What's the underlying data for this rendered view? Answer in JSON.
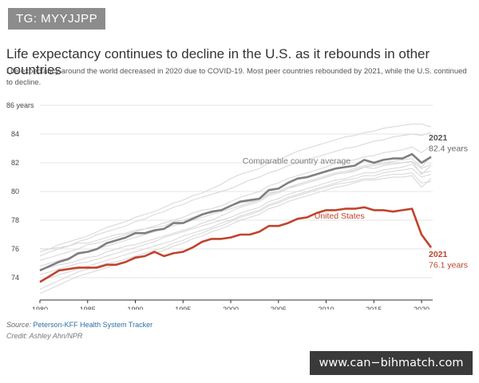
{
  "badge": "TG: MYYJJPP",
  "title": "Life expectancy continues to decline in the U.S. as it rebounds in other countries",
  "subtitle": "Life expectancy around the world decreased in 2020 due to COVID-19. Most peer countries rebounded by 2021, while the U.S. continued to decline.",
  "source_label": "Source:",
  "source_name": "Peterson-KFF Health System Tracker",
  "credit": "Credit: Ashley Ahn/NPR",
  "watermark": "www.can−bihmatch.com",
  "colors": {
    "us": "#c0442b",
    "average": "#7f7f7f",
    "countries": "#d6d6d6",
    "grid": "#e6e6e6",
    "axis": "#333333"
  },
  "chart_data": {
    "type": "line",
    "title": "Life expectancy continues to decline in the U.S. as it rebounds in other countries",
    "xlabel": "",
    "ylabel": "86 years",
    "xlim": [
      1980,
      2021
    ],
    "ylim": [
      72.5,
      86
    ],
    "x_ticks": [
      1980,
      1985,
      1990,
      1995,
      2000,
      2005,
      2010,
      2015,
      2020
    ],
    "y_ticks": [
      74,
      76,
      78,
      80,
      82,
      84,
      86
    ],
    "y_tick_labels": [
      "74",
      "76",
      "78",
      "80",
      "82",
      "84",
      "86 years"
    ],
    "grid": true,
    "x": [
      1980,
      1981,
      1982,
      1983,
      1984,
      1985,
      1986,
      1987,
      1988,
      1989,
      1990,
      1991,
      1992,
      1993,
      1994,
      1995,
      1996,
      1997,
      1998,
      1999,
      2000,
      2001,
      2002,
      2003,
      2004,
      2005,
      2006,
      2007,
      2008,
      2009,
      2010,
      2011,
      2012,
      2013,
      2014,
      2015,
      2016,
      2017,
      2018,
      2019,
      2020,
      2021
    ],
    "series": [
      {
        "name": "United States",
        "role": "us",
        "values": [
          73.7,
          74.1,
          74.5,
          74.6,
          74.7,
          74.7,
          74.7,
          74.9,
          74.9,
          75.1,
          75.4,
          75.5,
          75.8,
          75.5,
          75.7,
          75.8,
          76.1,
          76.5,
          76.7,
          76.7,
          76.8,
          77.0,
          77.0,
          77.2,
          77.6,
          77.6,
          77.8,
          78.1,
          78.2,
          78.5,
          78.7,
          78.7,
          78.8,
          78.8,
          78.9,
          78.7,
          78.7,
          78.6,
          78.7,
          78.8,
          77.0,
          76.1
        ],
        "end_label_year": "2021",
        "end_label_value": "76.1 years"
      },
      {
        "name": "Comparable country average",
        "role": "average",
        "values": [
          74.5,
          74.8,
          75.1,
          75.3,
          75.7,
          75.8,
          76.0,
          76.4,
          76.6,
          76.8,
          77.1,
          77.1,
          77.3,
          77.4,
          77.8,
          77.8,
          78.1,
          78.4,
          78.6,
          78.7,
          79.0,
          79.3,
          79.4,
          79.5,
          80.1,
          80.2,
          80.6,
          80.9,
          81.0,
          81.2,
          81.4,
          81.6,
          81.7,
          81.8,
          82.2,
          82.0,
          82.2,
          82.3,
          82.3,
          82.6,
          82.0,
          82.4
        ],
        "end_label_year": "2021",
        "end_label_value": "82.4 years"
      }
    ],
    "background_series": [
      {
        "values": [
          75.8,
          76.0,
          76.3,
          76.5,
          76.7,
          76.9,
          77.2,
          77.5,
          77.7,
          77.9,
          78.2,
          78.4,
          78.6,
          78.9,
          79.2,
          79.4,
          79.7,
          79.9,
          80.2,
          80.5,
          80.9,
          81.2,
          81.4,
          81.6,
          82.0,
          82.2,
          82.5,
          82.8,
          83.0,
          83.2,
          83.4,
          83.6,
          83.8,
          83.9,
          84.1,
          84.2,
          84.4,
          84.5,
          84.6,
          84.7,
          84.7,
          84.5
        ]
      },
      {
        "values": [
          75.5,
          75.8,
          76.0,
          76.2,
          76.5,
          76.7,
          77.0,
          77.2,
          77.4,
          77.6,
          77.9,
          78.1,
          78.4,
          78.6,
          78.9,
          79.1,
          79.4,
          79.6,
          79.8,
          80.0,
          80.2,
          80.5,
          80.8,
          81.0,
          81.3,
          81.5,
          81.8,
          82.0,
          82.2,
          82.4,
          82.6,
          82.8,
          83.0,
          83.1,
          83.3,
          83.5,
          83.6,
          83.8,
          83.9,
          84.0,
          83.9,
          84.1
        ]
      },
      {
        "values": [
          75.2,
          75.4,
          75.6,
          75.8,
          76.0,
          76.3,
          76.4,
          76.6,
          76.8,
          77.0,
          77.2,
          77.4,
          77.6,
          77.8,
          78.0,
          78.2,
          78.5,
          78.7,
          78.8,
          79.0,
          79.3,
          79.6,
          79.8,
          80.0,
          80.4,
          80.6,
          80.9,
          81.1,
          81.3,
          81.5,
          81.7,
          82.0,
          82.1,
          82.2,
          82.4,
          82.5,
          82.7,
          82.8,
          82.9,
          83.1,
          82.7,
          83.2
        ]
      },
      {
        "values": [
          74.8,
          75.0,
          75.2,
          75.4,
          75.6,
          75.8,
          76.0,
          76.2,
          76.4,
          76.6,
          76.8,
          77.0,
          77.2,
          77.4,
          77.6,
          77.8,
          78.0,
          78.2,
          78.4,
          78.6,
          78.8,
          79.0,
          79.2,
          79.4,
          79.8,
          80.0,
          80.3,
          80.5,
          80.7,
          80.9,
          81.1,
          81.3,
          81.4,
          81.6,
          81.8,
          81.9,
          82.0,
          82.1,
          82.2,
          82.3,
          81.7,
          82.5
        ]
      },
      {
        "values": [
          74.6,
          74.7,
          74.9,
          75.0,
          75.2,
          75.4,
          75.5,
          75.8,
          76.0,
          76.2,
          76.3,
          76.5,
          76.7,
          76.9,
          77.1,
          77.3,
          77.5,
          77.8,
          78.0,
          78.3,
          78.6,
          78.9,
          79.1,
          79.3,
          79.7,
          79.9,
          80.2,
          80.4,
          80.6,
          80.8,
          81.0,
          81.2,
          81.3,
          81.5,
          81.7,
          81.8,
          81.9,
          82.0,
          82.0,
          82.1,
          81.2,
          81.8
        ]
      },
      {
        "values": [
          74.2,
          74.4,
          74.6,
          74.8,
          75.0,
          75.1,
          75.3,
          75.5,
          75.7,
          75.9,
          76.1,
          76.3,
          76.5,
          76.8,
          77.0,
          77.2,
          77.4,
          77.6,
          77.8,
          78.0,
          78.2,
          78.5,
          78.7,
          78.9,
          79.3,
          79.5,
          79.8,
          80.0,
          80.2,
          80.4,
          80.6,
          80.8,
          80.9,
          81.1,
          81.3,
          81.3,
          81.5,
          81.6,
          81.7,
          81.9,
          81.3,
          81.4
        ]
      },
      {
        "values": [
          73.8,
          74.0,
          74.2,
          74.4,
          74.6,
          74.8,
          75.0,
          75.2,
          75.4,
          75.6,
          75.8,
          76.0,
          76.2,
          76.4,
          76.6,
          76.9,
          77.1,
          77.3,
          77.5,
          77.8,
          78.0,
          78.3,
          78.5,
          78.7,
          79.1,
          79.3,
          79.6,
          79.8,
          80.0,
          80.2,
          80.4,
          80.6,
          80.8,
          80.9,
          81.1,
          81.1,
          81.3,
          81.4,
          81.5,
          81.6,
          81.0,
          81.2
        ]
      },
      {
        "values": [
          73.2,
          73.5,
          73.8,
          74.1,
          74.4,
          74.6,
          74.8,
          75.0,
          75.1,
          75.3,
          75.5,
          75.7,
          75.9,
          76.1,
          76.4,
          76.6,
          76.9,
          77.1,
          77.4,
          77.6,
          77.9,
          78.2,
          78.4,
          78.6,
          79.0,
          79.2,
          79.5,
          79.7,
          79.9,
          80.1,
          80.3,
          80.5,
          80.6,
          80.7,
          80.9,
          80.9,
          81.1,
          81.2,
          81.2,
          81.3,
          80.6,
          80.7
        ]
      },
      {
        "values": [
          72.9,
          73.2,
          73.5,
          73.8,
          74.1,
          74.3,
          74.5,
          74.7,
          74.9,
          75.1,
          75.3,
          75.5,
          75.7,
          75.9,
          76.2,
          76.4,
          76.7,
          76.9,
          77.2,
          77.4,
          77.7,
          78.0,
          78.2,
          78.4,
          78.8,
          79.0,
          79.3,
          79.5,
          79.7,
          79.9,
          80.1,
          80.3,
          80.4,
          80.6,
          80.8,
          80.8,
          80.9,
          81.0,
          81.0,
          81.1,
          80.3,
          80.9
        ]
      },
      {
        "values": [
          76.0,
          76.0,
          76.1,
          76.2,
          76.4,
          76.4,
          76.6,
          76.8,
          77.0,
          77.1,
          77.3,
          77.4,
          77.5,
          77.6,
          77.9,
          78.0,
          78.2,
          78.4,
          78.5,
          78.7,
          79.0,
          79.2,
          79.3,
          79.4,
          79.9,
          80.0,
          80.3,
          80.4,
          80.6,
          80.8,
          81.0,
          81.2,
          81.3,
          81.4,
          81.7,
          81.6,
          81.8,
          81.9,
          82.0,
          82.1,
          81.6,
          81.9
        ]
      }
    ]
  }
}
